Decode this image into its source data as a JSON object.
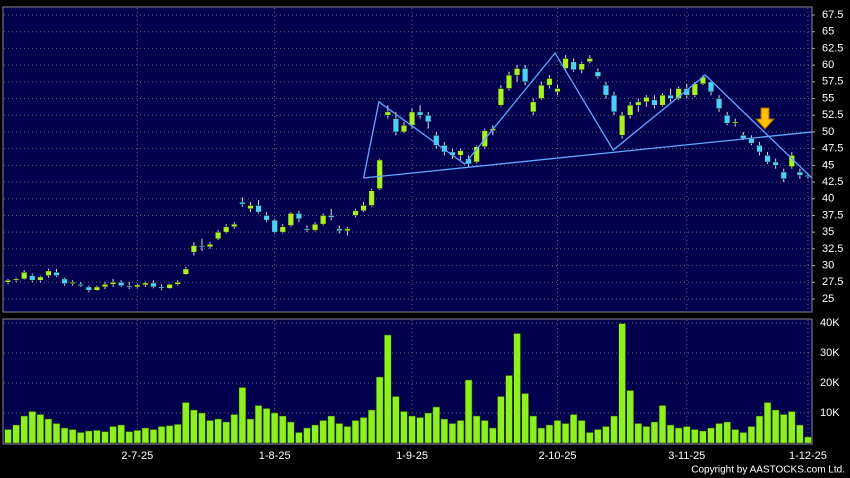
{
  "chart_data": [
    {
      "type": "candlestick",
      "up_color": "#a8f028",
      "down_color": "#48d0ff",
      "ylim": [
        23.05,
        68.55
      ],
      "yticks": [
        25,
        27.5,
        30,
        32.5,
        35,
        37.5,
        40,
        42.5,
        45,
        47.5,
        50,
        52.5,
        55,
        57.5,
        60,
        62.5,
        65,
        67.5
      ],
      "grid": true,
      "categories": [
        null,
        null,
        null,
        null,
        null,
        null,
        null,
        null,
        null,
        null,
        null,
        null,
        null,
        null,
        null,
        null,
        "2-7-25",
        null,
        null,
        null,
        null,
        null,
        null,
        null,
        null,
        null,
        null,
        null,
        null,
        null,
        null,
        null,
        null,
        "1-8-25",
        null,
        null,
        null,
        null,
        null,
        null,
        null,
        null,
        null,
        null,
        null,
        null,
        null,
        null,
        null,
        null,
        "1-9-25",
        null,
        null,
        null,
        null,
        null,
        null,
        null,
        null,
        null,
        null,
        null,
        null,
        null,
        null,
        null,
        null,
        null,
        "2-10-25",
        null,
        null,
        null,
        null,
        null,
        null,
        null,
        null,
        null,
        null,
        null,
        null,
        null,
        null,
        null,
        "3-11-25",
        null,
        null,
        null,
        null,
        null,
        null,
        null,
        null,
        null,
        null,
        null,
        null,
        null,
        null,
        "1-12-25"
      ],
      "ohlc": [
        [
          27.5,
          28,
          27.2,
          27.8
        ],
        [
          27.8,
          28.2,
          27.5,
          28
        ],
        [
          28,
          29.3,
          27.9,
          29
        ],
        [
          28.5,
          28.8,
          27.5,
          27.8
        ],
        [
          27.8,
          28.5,
          27.5,
          28.3
        ],
        [
          28.5,
          29.5,
          28.2,
          29.2
        ],
        [
          29,
          29.5,
          28.3,
          28.5
        ],
        [
          28,
          28.2,
          27,
          27.3
        ],
        [
          27.3,
          27.8,
          27,
          27.5
        ],
        [
          27.2,
          27.5,
          26.8,
          27
        ],
        [
          26.8,
          27,
          26,
          26.3
        ],
        [
          26.3,
          27,
          26.2,
          26.8
        ],
        [
          26.8,
          27.5,
          26.5,
          27.2
        ],
        [
          27.2,
          28,
          26.8,
          27.5
        ],
        [
          27.5,
          27.8,
          26.8,
          27
        ],
        [
          27,
          27.5,
          26.5,
          26.8
        ],
        [
          26.8,
          27.3,
          26.6,
          27.1
        ],
        [
          27.1,
          27.6,
          26.8,
          27.4
        ],
        [
          27.4,
          27.8,
          26.6,
          26.8
        ],
        [
          26.8,
          27.2,
          26.3,
          26.6
        ],
        [
          26.6,
          27.3,
          26.5,
          27.2
        ],
        [
          27.2,
          27.8,
          27,
          27.5
        ],
        [
          28.7,
          29.8,
          28.6,
          29.5
        ],
        [
          32,
          33.5,
          31.5,
          33
        ],
        [
          33,
          34,
          32.2,
          32.8
        ],
        [
          32.8,
          33.5,
          32.5,
          33.2
        ],
        [
          34,
          35.3,
          33.8,
          35
        ],
        [
          35,
          36.2,
          34.8,
          35.8
        ],
        [
          35.8,
          36.5,
          35.5,
          36.2
        ],
        [
          39.5,
          40.2,
          38.8,
          39.2
        ],
        [
          38.5,
          39.5,
          38,
          39
        ],
        [
          39,
          39.8,
          37.8,
          38
        ],
        [
          37.5,
          38,
          36.5,
          36.8
        ],
        [
          36.8,
          37,
          34.8,
          35
        ],
        [
          35,
          36.2,
          34.8,
          35.8
        ],
        [
          36,
          38,
          35.8,
          37.8
        ],
        [
          37.8,
          38.2,
          36.5,
          37
        ],
        [
          35.5,
          36,
          35,
          35.3
        ],
        [
          35.3,
          36.5,
          35.1,
          36.2
        ],
        [
          36.2,
          37.8,
          36,
          37.5
        ],
        [
          37.5,
          38.5,
          36.8,
          37.2
        ],
        [
          35.5,
          36,
          34.8,
          35.2
        ],
        [
          35.2,
          35.8,
          34.5,
          35.5
        ],
        [
          37.5,
          38.5,
          37.2,
          38.2
        ],
        [
          38.2,
          39.5,
          38,
          39
        ],
        [
          39,
          41.5,
          38.8,
          41.2
        ],
        [
          41.5,
          46,
          41.3,
          45.8
        ],
        [
          52.5,
          54,
          52,
          53
        ],
        [
          52,
          53,
          49.5,
          50
        ],
        [
          50,
          51.5,
          49.8,
          51
        ],
        [
          51,
          53.5,
          50.5,
          53
        ],
        [
          53,
          54,
          52,
          52.5
        ],
        [
          52.5,
          53,
          50.5,
          51.5
        ],
        [
          49.5,
          50,
          47.5,
          48
        ],
        [
          48,
          48.5,
          46.5,
          47
        ],
        [
          47,
          47.5,
          46,
          46.5
        ],
        [
          46.5,
          47.5,
          45.8,
          47.2
        ],
        [
          46,
          46.5,
          44.8,
          45.2
        ],
        [
          45.5,
          48,
          45.3,
          47.8
        ],
        [
          47.8,
          50.5,
          47.5,
          50.2
        ],
        [
          50.2,
          51,
          49.5,
          50.5
        ],
        [
          54,
          57,
          53.8,
          56.5
        ],
        [
          56.5,
          59,
          56.2,
          58.5
        ],
        [
          58.5,
          60,
          57.5,
          59.5
        ],
        [
          59.5,
          60,
          57,
          57.5
        ],
        [
          53,
          55,
          52.5,
          54.5
        ],
        [
          55,
          57.5,
          54.8,
          57
        ],
        [
          57,
          58.5,
          56.5,
          58
        ],
        [
          56,
          57,
          55.5,
          56.5
        ],
        [
          59.5,
          61.5,
          59.2,
          61
        ],
        [
          60.5,
          61,
          59,
          59.3
        ],
        [
          59.3,
          60.5,
          58.8,
          60.2
        ],
        [
          60.5,
          61.5,
          60.3,
          61
        ],
        [
          59,
          59.5,
          58,
          58.3
        ],
        [
          57,
          57.5,
          55,
          55.5
        ],
        [
          55.5,
          56,
          52.5,
          53
        ],
        [
          49.5,
          53,
          49,
          52.5
        ],
        [
          52.5,
          54.5,
          52,
          54
        ],
        [
          54,
          55,
          53,
          54.5
        ],
        [
          54.5,
          55.5,
          53.8,
          55.2
        ],
        [
          54.8,
          55.5,
          53.5,
          54
        ],
        [
          54,
          55.8,
          53.8,
          55.5
        ],
        [
          55.5,
          56.5,
          54.5,
          55
        ],
        [
          55,
          56.8,
          54.8,
          56.5
        ],
        [
          56.5,
          57.2,
          55,
          55.5
        ],
        [
          55.5,
          57.5,
          55.2,
          57.2
        ],
        [
          57.2,
          58.5,
          57,
          58.2
        ],
        [
          57.5,
          57.8,
          55.5,
          56
        ],
        [
          55,
          55.5,
          53,
          53.5
        ],
        [
          52.5,
          53,
          51,
          51.3
        ],
        [
          51.3,
          52,
          50.8,
          51.5
        ],
        [
          49.5,
          50,
          48.8,
          49
        ],
        [
          49,
          49.5,
          48,
          48.3
        ],
        [
          48,
          48.5,
          46.5,
          47
        ],
        [
          46.5,
          47,
          45.2,
          45.5
        ],
        [
          45.5,
          46,
          44.5,
          45
        ],
        [
          44,
          44.5,
          42.5,
          43
        ],
        [
          44.8,
          47,
          44.5,
          46.5
        ],
        [
          44,
          44.5,
          43,
          43.5
        ],
        [
          43.5,
          43.8,
          43,
          43.3
        ]
      ],
      "trendlines": [
        {
          "color": "#5fa8ff",
          "x": [
            44,
            45.9,
            56.5,
            67.7,
            74.9,
            86.3,
            99.5
          ],
          "y": [
            43.1,
            54.5,
            45.2,
            61.8,
            47.3,
            58.5,
            43.1
          ]
        },
        {
          "color": "#5fa8ff",
          "x": [
            44,
            99.5
          ],
          "y": [
            43.1,
            50
          ]
        }
      ]
    },
    {
      "type": "bar",
      "color": "#8ef020",
      "ylim": [
        0,
        41000
      ],
      "yticks": [
        {
          "value": 10000,
          "label": "10K"
        },
        {
          "value": 20000,
          "label": "20K"
        },
        {
          "value": 30000,
          "label": "30K"
        },
        {
          "value": 40000,
          "label": "40K"
        }
      ],
      "grid": true,
      "values": [
        4500,
        6000,
        9000,
        10500,
        9500,
        8000,
        6500,
        5000,
        4500,
        3500,
        4000,
        4200,
        3800,
        5500,
        6000,
        3800,
        4200,
        5000,
        4500,
        5500,
        5800,
        6200,
        13500,
        11000,
        10000,
        7500,
        8000,
        7000,
        9500,
        18500,
        8000,
        12500,
        11500,
        10000,
        9000,
        7000,
        3500,
        5000,
        6000,
        7500,
        9000,
        6500,
        5500,
        7500,
        8500,
        11000,
        22000,
        36000,
        15500,
        10500,
        9000,
        8500,
        10000,
        12000,
        8000,
        6500,
        7500,
        21000,
        9000,
        7500,
        5000,
        15500,
        22500,
        36500,
        16500,
        9000,
        5000,
        6000,
        7500,
        6500,
        9500,
        7500,
        3500,
        4500,
        5500,
        9000,
        39800,
        17500,
        6500,
        5500,
        7000,
        12500,
        6000,
        5000,
        5500,
        4500,
        4000,
        5000,
        6500,
        7000,
        4500,
        3500,
        5500,
        9000,
        13500,
        11000,
        9500,
        10500,
        6000,
        2000
      ],
      "copyright": "Copyright by AASTOCKS.com Ltd."
    }
  ]
}
